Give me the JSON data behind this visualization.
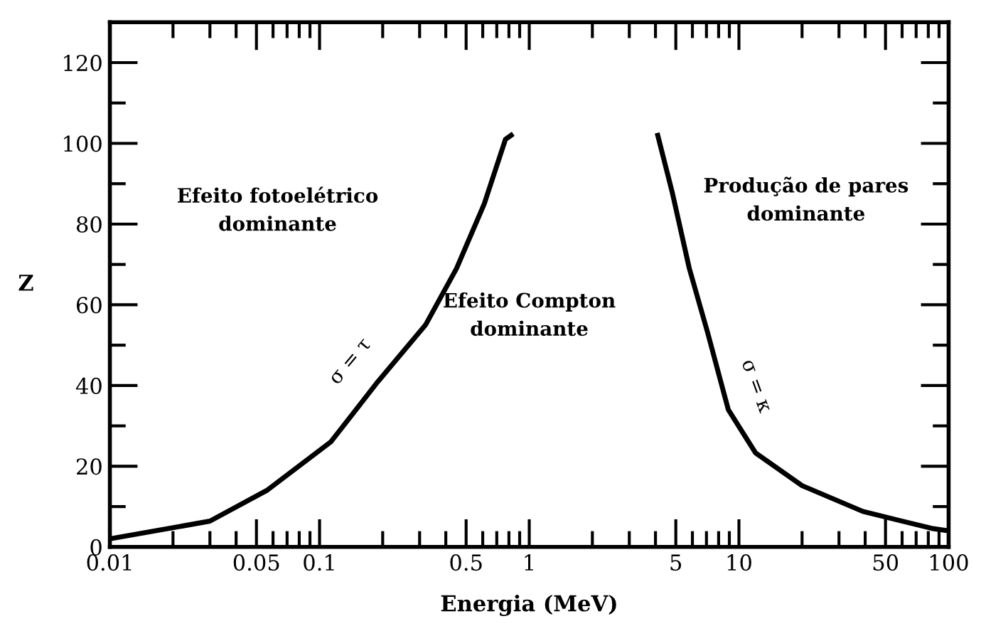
{
  "chart_data": {
    "type": "line",
    "xlabel": "Energia (MeV)",
    "ylabel": "Z",
    "log": "x",
    "grid": false,
    "legend": false,
    "marker": "none",
    "line_style": "solid",
    "xlim": [
      0.01,
      100
    ],
    "xticks": [
      0.01,
      0.05,
      0.1,
      0.5,
      1,
      5,
      10,
      50,
      100
    ],
    "ylim": [
      0,
      130
    ],
    "yticks": [
      0,
      20,
      40,
      60,
      80,
      100,
      120
    ],
    "series": [
      {
        "name": "σ = τ",
        "color": "#000000",
        "x": [
          0.01,
          0.03,
          0.056,
          0.113,
          0.19,
          0.32,
          0.45,
          0.61,
          0.77,
          0.82
        ],
        "values": [
          2,
          6.4,
          14,
          26,
          41,
          55,
          69,
          85,
          101,
          102
        ]
      },
      {
        "name": "σ = κ",
        "color": "#000000",
        "x": [
          4.1,
          4.8,
          5.8,
          7.1,
          8.9,
          12,
          20,
          39,
          83,
          100
        ],
        "values": [
          102,
          88,
          69,
          53,
          34,
          23.3,
          15.2,
          8.8,
          4.6,
          4
        ]
      }
    ],
    "annotations": [
      "Efeito fotoelétrico\ndominante",
      "Efeito Compton\ndominante",
      "Produção de pares\ndominante"
    ]
  }
}
